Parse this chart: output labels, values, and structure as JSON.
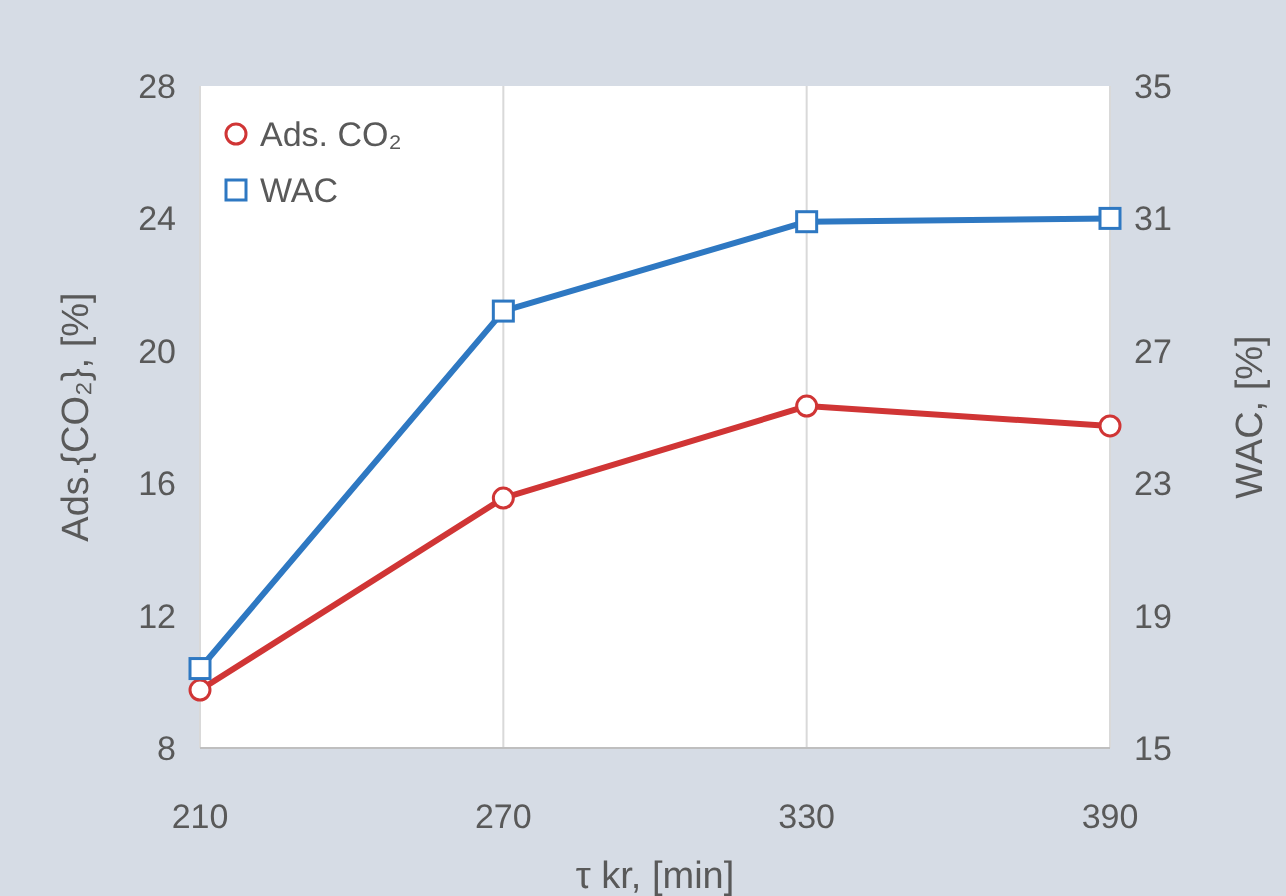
{
  "chart_data": {
    "type": "line",
    "xlabel": "τ kr, [min]",
    "ylabel": "Ads.{CO₂}, [%]",
    "y2label": "WAC, [%]",
    "x": [
      210,
      270,
      330,
      390
    ],
    "series": [
      {
        "name": "Ads. CO₂",
        "color": "#d03535",
        "marker": "circle",
        "values": [
          9.75,
          15.55,
          18.33,
          17.73
        ]
      },
      {
        "name": "WAC",
        "color": "#2e78c2",
        "marker": "square",
        "axis": "y2",
        "values": [
          17.4,
          28.2,
          30.9,
          31.0
        ]
      }
    ],
    "xlim": [
      210,
      390
    ],
    "xticks": [
      210,
      270,
      330,
      390
    ],
    "ylim": [
      8,
      28
    ],
    "yticks": [
      8,
      12,
      16,
      20,
      24,
      28
    ],
    "y2lim": [
      15,
      35
    ],
    "y2ticks": [
      15,
      19,
      23,
      27,
      31,
      35
    ],
    "grid": "x",
    "legend": "top left",
    "line_style": "solid"
  }
}
